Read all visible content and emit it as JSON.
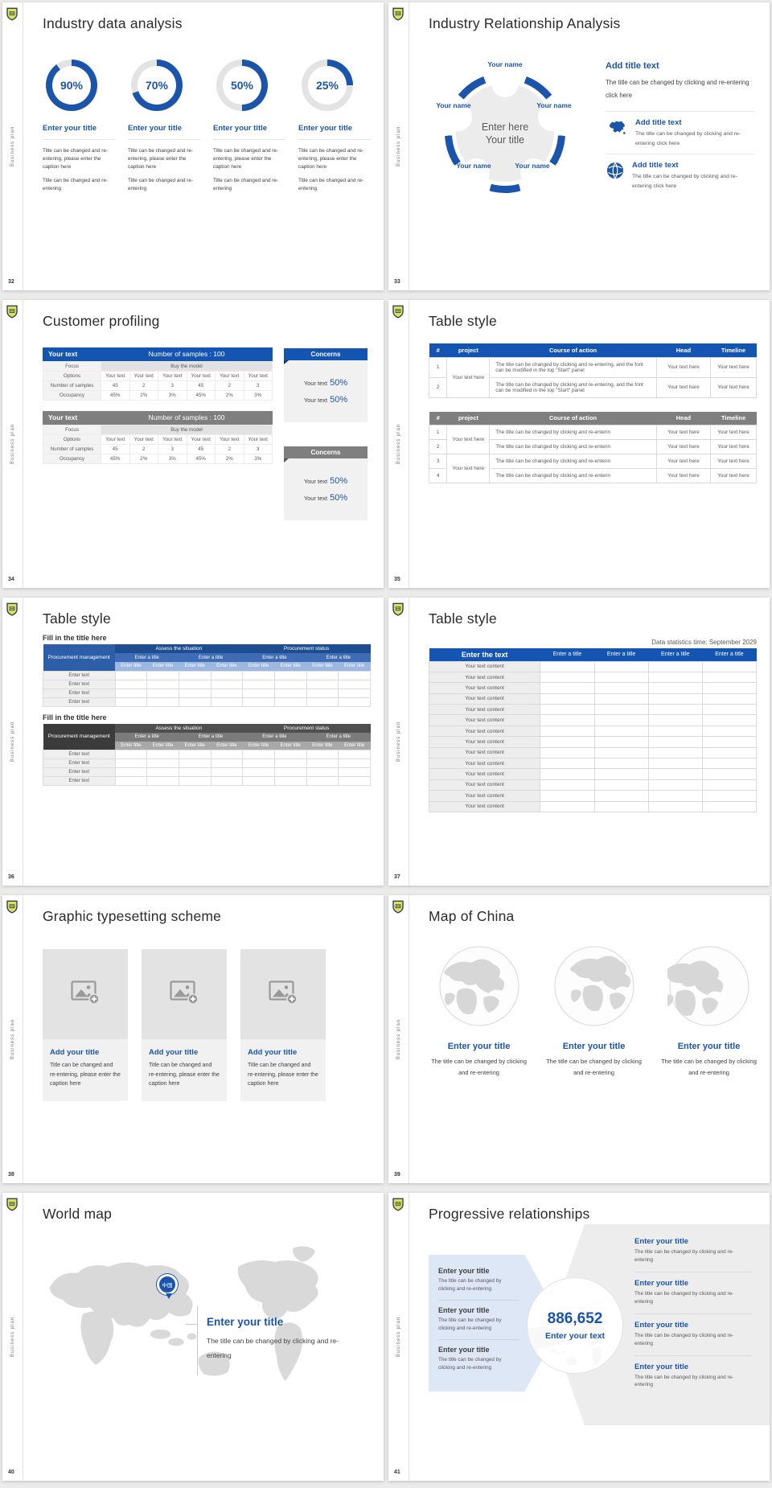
{
  "side_label": "Business plan",
  "accent_color": "#1b55ab",
  "header_blue": "#1455b4",
  "header_gray": "#7f7f7f",
  "slides": {
    "s32": {
      "number": "32",
      "title": "Industry data analysis",
      "donuts": [
        {
          "percent": 90,
          "label": "90%",
          "title": "Enter your title",
          "caption1": "Title can be changed and re-entering, please enter the caption here",
          "caption2": "Title can be changed and re-entering"
        },
        {
          "percent": 70,
          "label": "70%",
          "title": "Enter your title",
          "caption1": "Title can be changed and re-entering, please enter the caption here",
          "caption2": "Title can be changed and re-entering"
        },
        {
          "percent": 50,
          "label": "50%",
          "title": "Enter your title",
          "caption1": "Title can be changed and re-entering, please enter the caption here",
          "caption2": "Title can be changed and re-entering"
        },
        {
          "percent": 25,
          "label": "25%",
          "title": "Enter your title",
          "caption1": "Title can be changed and re-entering, please enter the caption here",
          "caption2": "Title can be changed and re-entering"
        }
      ]
    },
    "s33": {
      "number": "33",
      "title": "Industry Relationship Analysis",
      "nodes": [
        "Your name",
        "Your name",
        "Your name",
        "Your name",
        "Your name"
      ],
      "center_line1": "Enter here",
      "center_line2": "Your title",
      "main": {
        "title": "Add title text",
        "desc": "The title can be changed by clicking and re-entering click here"
      },
      "items": [
        {
          "icon": "china-map-icon",
          "title": "Add title text",
          "desc": "The title can be changed by clicking and re-entering click here"
        },
        {
          "icon": "globe-icon",
          "title": "Add title text",
          "desc": "The title can be changed by clicking and re-entering click here"
        }
      ]
    },
    "s34": {
      "number": "34",
      "title": "Customer profiling",
      "tables": [
        {
          "variant": "blue",
          "corner": "Your text",
          "header": "Number of samples : 100",
          "focus_label": "Focus",
          "focus_value": "Buy the model",
          "rows": [
            {
              "label": "Options",
              "cells": [
                "Your text",
                "Your text",
                "Your text",
                "Your text",
                "Your text",
                "Your text"
              ]
            },
            {
              "label": "Number of samples",
              "cells": [
                "45",
                "2",
                "3",
                "45",
                "2",
                "3"
              ]
            },
            {
              "label": "Occupancy",
              "cells": [
                "45%",
                "2%",
                "3%",
                "45%",
                "2%",
                "3%"
              ]
            }
          ],
          "concerns": {
            "title": "Concerns",
            "lines": [
              {
                "text": "Your text",
                "value": "50%"
              },
              {
                "text": "Your text",
                "value": "50%"
              }
            ]
          }
        },
        {
          "variant": "gray",
          "corner": "Your text",
          "header": "Number of samples : 100",
          "focus_label": "Focus",
          "focus_value": "Buy the model",
          "rows": [
            {
              "label": "Options",
              "cells": [
                "Your text",
                "Your text",
                "Your text",
                "Your text",
                "Your text",
                "Your text"
              ]
            },
            {
              "label": "Number of samples",
              "cells": [
                "45",
                "2",
                "3",
                "45",
                "2",
                "3"
              ]
            },
            {
              "label": "Occupancy",
              "cells": [
                "45%",
                "2%",
                "3%",
                "45%",
                "2%",
                "3%"
              ]
            }
          ],
          "concerns": {
            "title": "Concerns",
            "lines": [
              {
                "text": "Your text",
                "value": "50%"
              },
              {
                "text": "Your text",
                "value": "50%"
              }
            ]
          }
        }
      ]
    },
    "s35": {
      "number": "35",
      "title": "Table style",
      "columns": [
        "#",
        "project",
        "Course of action",
        "Head",
        "Timeline"
      ],
      "tables": [
        {
          "variant": "blue",
          "groups": [
            {
              "project": "Your text here",
              "rows": [
                {
                  "num": "1",
                  "action": "The title can be changed by clicking and re-entering, and the font can be modified in the top \"Start\" panel",
                  "head": "Your text here",
                  "timeline": "Your text here"
                },
                {
                  "num": "2",
                  "action": "The title can be changed by clicking and re-entering, and the font can be modified in the top \"Start\" panel",
                  "head": "Your text here",
                  "timeline": "Your text here"
                }
              ]
            }
          ]
        },
        {
          "variant": "gray",
          "groups": [
            {
              "project": "Your text here",
              "rows": [
                {
                  "num": "1",
                  "action": "The title can be changed by clicking and re-enterin",
                  "head": "Your text here",
                  "timeline": "Your text here"
                },
                {
                  "num": "2",
                  "action": "The title can be changed by clicking and re-enterin",
                  "head": "Your text here",
                  "timeline": "Your text here"
                }
              ]
            },
            {
              "project": "Your text here",
              "rows": [
                {
                  "num": "3",
                  "action": "The title can be changed by clicking and re-enterin",
                  "head": "Your text here",
                  "timeline": "Your text here"
                },
                {
                  "num": "4",
                  "action": "The title can be changed by clicking and re-enterin",
                  "head": "Your text here",
                  "timeline": "Your text here"
                }
              ]
            }
          ]
        }
      ]
    },
    "s36": {
      "number": "36",
      "title": "Table style",
      "sections": [
        {
          "variant": "blue",
          "heading": "Fill in the title here",
          "corner": "Procurement management",
          "groups": [
            "Assess the situation",
            "Procurement status"
          ],
          "subheads": [
            "Enter a title",
            "Enter a title",
            "Enter a title",
            "Enter a title"
          ],
          "cols": [
            "Enter title",
            "Enter title",
            "Enter title",
            "Enter title",
            "Enter title",
            "Enter title",
            "Enter title",
            "Enter title"
          ],
          "row_labels": [
            "Enter text",
            "Enter text",
            "Enter text",
            "Enter text"
          ]
        },
        {
          "variant": "dark",
          "heading": "Fill in the title here",
          "corner": "Procurement management",
          "groups": [
            "Assess the situation",
            "Procurement status"
          ],
          "subheads": [
            "Enter a title",
            "Enter a title",
            "Enter a title",
            "Enter a title"
          ],
          "cols": [
            "Enter title",
            "Enter title",
            "Enter title",
            "Enter title",
            "Enter title",
            "Enter title",
            "Enter title",
            "Enter title"
          ],
          "row_labels": [
            "Enter text",
            "Enter text",
            "Enter text",
            "Enter text"
          ]
        }
      ]
    },
    "s37": {
      "number": "37",
      "title": "Table style",
      "note": "Data statistics time: September 2029",
      "header": [
        "Enter the text",
        "Enter a title",
        "Enter a title",
        "Enter a title",
        "Enter a title"
      ],
      "rows": [
        "Your text content",
        "Your text content",
        "Your text content",
        "Your text content",
        "Your text content",
        "Your text content",
        "Your text content",
        "Your text content",
        "Your text content",
        "Your text content",
        "Your text content",
        "Your text content",
        "Your text content",
        "Your text content"
      ]
    },
    "s38": {
      "number": "38",
      "title": "Graphic typesetting scheme",
      "cards": [
        {
          "title": "Add your title",
          "caption": "Title can be changed and re-entering, please enter the caption here"
        },
        {
          "title": "Add your title",
          "caption": "Title can be changed and re-entering, please enter the caption here"
        },
        {
          "title": "Add your title",
          "caption": "Title can be changed and re-entering, please enter the caption here"
        }
      ]
    },
    "s39": {
      "number": "39",
      "title": "Map of China",
      "items": [
        {
          "title": "Enter your title",
          "caption": "The title can be changed by clicking and re-entering"
        },
        {
          "title": "Enter your title",
          "caption": "The title can be changed by clicking and re-entering"
        },
        {
          "title": "Enter your title",
          "caption": "The title can be changed by clicking and re-entering"
        }
      ]
    },
    "s40": {
      "number": "40",
      "title": "World map",
      "pin_label": "中国",
      "callout": {
        "title": "Enter your title",
        "caption": "The title can be changed by clicking and re-entering"
      }
    },
    "s41": {
      "number": "41",
      "title": "Progressive relationships",
      "left_items": [
        {
          "title": "Enter your title",
          "desc": "The title can be changed by clicking and re-entering"
        },
        {
          "title": "Enter your title",
          "desc": "The title can be changed by clicking and re-entering"
        },
        {
          "title": "Enter your title",
          "desc": "The title can be changed by clicking and re-entering"
        }
      ],
      "center": {
        "number": "886,652",
        "label": "Enter your text"
      },
      "right_items": [
        {
          "title": "Enter your title",
          "desc": "The title can be changed by clicking and re-entering"
        },
        {
          "title": "Enter your title",
          "desc": "The title can be changed by clicking and re-entering"
        },
        {
          "title": "Enter your title",
          "desc": "The title can be changed by clicking and re-entering"
        },
        {
          "title": "Enter your title",
          "desc": "The title can be changed by clicking and re-entering"
        }
      ]
    }
  }
}
